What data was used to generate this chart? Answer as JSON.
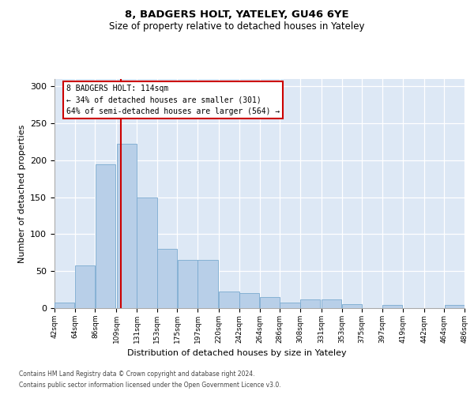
{
  "title1": "8, BADGERS HOLT, YATELEY, GU46 6YE",
  "title2": "Size of property relative to detached houses in Yateley",
  "xlabel": "Distribution of detached houses by size in Yateley",
  "ylabel": "Number of detached properties",
  "bins": [
    42,
    64,
    86,
    109,
    131,
    153,
    175,
    197,
    220,
    242,
    264,
    286,
    308,
    331,
    353,
    375,
    397,
    419,
    442,
    464,
    486
  ],
  "bar_heights": [
    8,
    58,
    195,
    222,
    150,
    80,
    65,
    65,
    22,
    20,
    15,
    8,
    12,
    12,
    5,
    0,
    4,
    0,
    0,
    4
  ],
  "bar_color": "#b8cfe8",
  "bar_edge_color": "#7aaad0",
  "vline_x": 114,
  "vline_color": "#cc0000",
  "annotation_text": "8 BADGERS HOLT: 114sqm\n← 34% of detached houses are smaller (301)\n64% of semi-detached houses are larger (564) →",
  "annotation_box_color": "white",
  "annotation_box_edge": "#cc0000",
  "ylim": [
    0,
    310
  ],
  "yticks": [
    0,
    50,
    100,
    150,
    200,
    250,
    300
  ],
  "footnote1": "Contains HM Land Registry data © Crown copyright and database right 2024.",
  "footnote2": "Contains public sector information licensed under the Open Government Licence v3.0.",
  "bg_color": "#dde8f5"
}
